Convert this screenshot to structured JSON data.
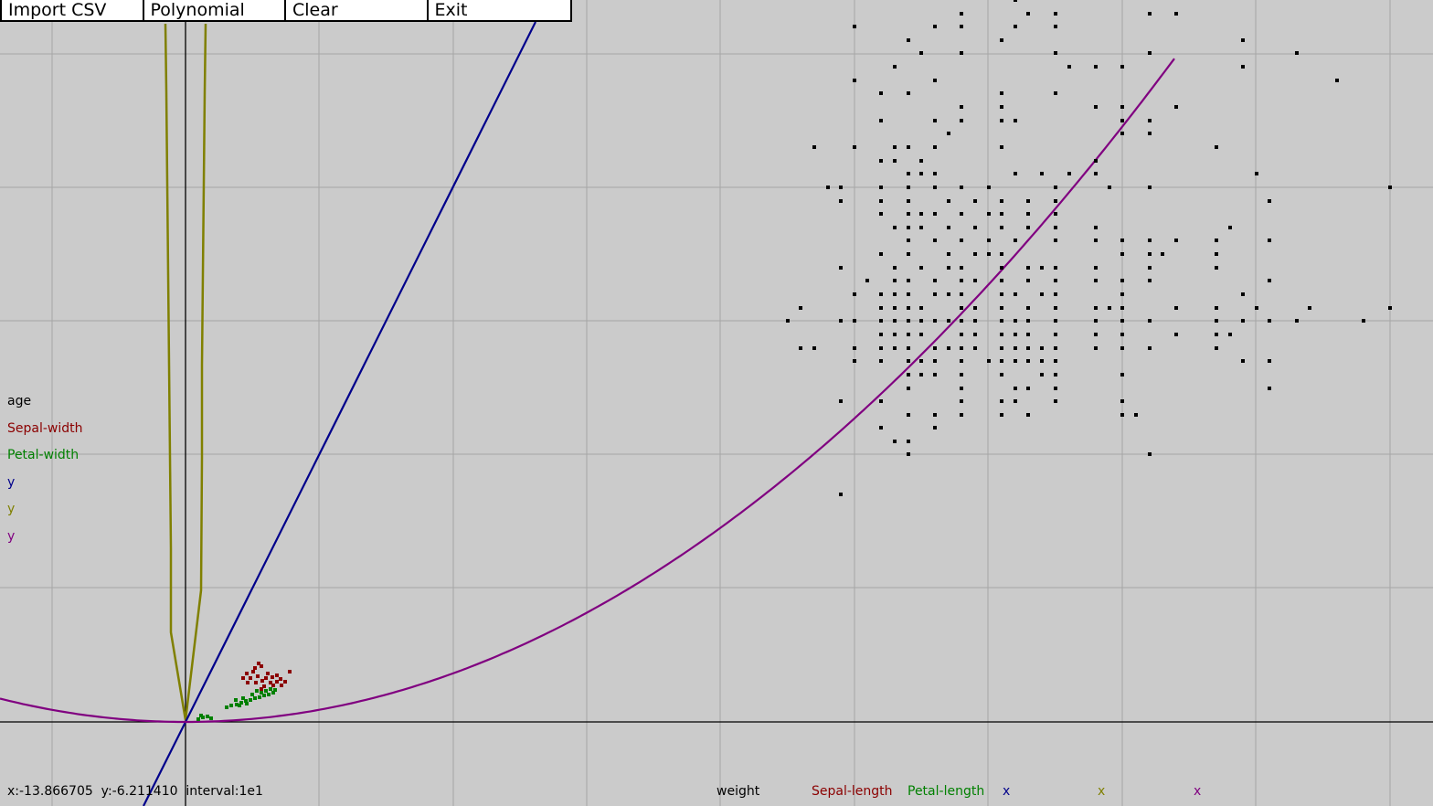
{
  "menu": {
    "import_csv": "Import CSV",
    "polynomial": "Polynomial",
    "clear": "Clear",
    "exit": "Exit"
  },
  "legend_y": [
    {
      "label": "age",
      "color": "#000000"
    },
    {
      "label": "Sepal-width",
      "color": "#8b0000"
    },
    {
      "label": "Petal-width",
      "color": "#008000"
    },
    {
      "label": "y",
      "color": "#00008b"
    },
    {
      "label": "y",
      "color": "#808000"
    },
    {
      "label": "y",
      "color": "#800080"
    }
  ],
  "legend_x": [
    {
      "label": "weight",
      "color": "#000000"
    },
    {
      "label": "Sepal-length",
      "color": "#8b0000"
    },
    {
      "label": "Petal-length",
      "color": "#008000"
    },
    {
      "label": "x",
      "color": "#00008b"
    },
    {
      "label": "x",
      "color": "#808000"
    },
    {
      "label": "x",
      "color": "#800080"
    }
  ],
  "status": {
    "cursor_x": "x:-13.866705",
    "cursor_y": "y:-6.211410",
    "interval": "interval:1e1"
  },
  "colors": {
    "background": "#cbcbcb",
    "grid": "#a6a6a6",
    "axes": "#000000",
    "linear_fit": "#00008b",
    "olive_fit": "#808000",
    "poly_fit": "#800080",
    "sepal": "#8b0000",
    "petal": "#008000",
    "points": "#000000"
  }
}
